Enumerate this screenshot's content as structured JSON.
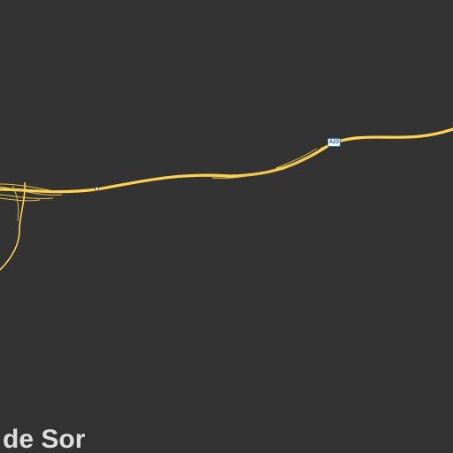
{
  "map": {
    "background_color": "#333333",
    "road_color": "#ffd34d",
    "minor_road_color": "#e6c14a",
    "place_label": "e de Sor",
    "shield": {
      "label": "A23",
      "border_color": "#2a6fc0",
      "text_color": "#1a4f9a"
    },
    "icons": [
      "junction-icon",
      "road-shield-icon"
    ]
  }
}
